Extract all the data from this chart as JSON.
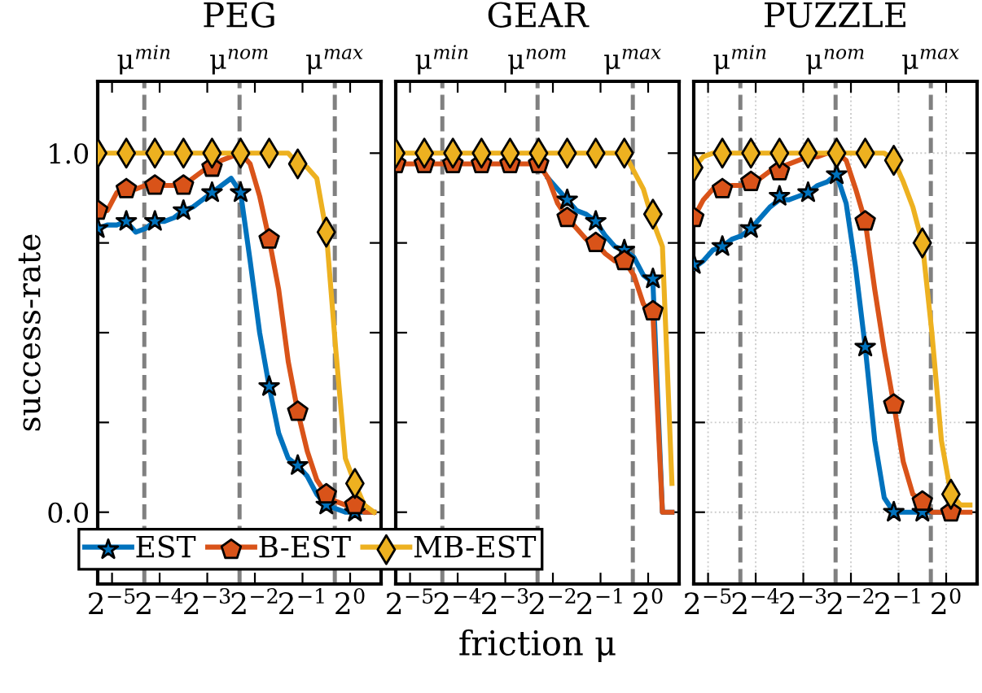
{
  "chart_data": [
    {
      "type": "line",
      "title": "PEG",
      "ylabel": "success-rate",
      "log": "x",
      "legend": "bottom right",
      "grid": false,
      "x": [
        0.02537,
        0.02916,
        0.03349,
        0.03847,
        0.04419,
        0.05076,
        0.05831,
        0.06699,
        0.07695,
        0.08839,
        0.1015,
        0.1166,
        0.134,
        0.1539,
        0.1768,
        0.2031,
        0.2333,
        0.2679,
        0.3078,
        0.3536,
        0.4061,
        0.4665,
        0.5359,
        0.6156,
        0.7071,
        0.8123,
        0.933,
        1.072,
        1.231,
        1.414
      ],
      "xlim": [
        0.02537,
        1.569
      ],
      "xticks": [
        {
          "value": 0.03125,
          "label": "2$^{−5}$"
        },
        {
          "value": 0.0625,
          "label": "2$^{−4}$"
        },
        {
          "value": 0.125,
          "label": "2$^{−3}$"
        },
        {
          "value": 0.25,
          "label": "2$^{−2}$"
        },
        {
          "value": 0.5,
          "label": "2$^{−1}$"
        },
        {
          "value": 1,
          "label": "2$^{0}$"
        }
      ],
      "ylim": [
        -0.2,
        1.2
      ],
      "yticks": [
        {
          "value": 0,
          "label": "0.0"
        },
        {
          "value": 0.25,
          "label": null
        },
        {
          "value": 0.5,
          "label": null
        },
        {
          "value": 0.75,
          "label": null
        },
        {
          "value": 1,
          "label": "1.0"
        }
      ],
      "ref_lines": [
        {
          "axis": "x",
          "value": 0.05,
          "label": "μ$^{min}$",
          "color": "#808080",
          "line_style": "dashed"
        },
        {
          "axis": "x",
          "value": 0.2,
          "label": "μ$^{nom}$",
          "color": "#808080",
          "line_style": "dashed"
        },
        {
          "axis": "x",
          "value": 0.8,
          "label": "μ$^{max}$",
          "color": "#808080",
          "line_style": "dashed"
        }
      ],
      "series": [
        {
          "name": "EST",
          "color": "#0072bd",
          "values": [
            0.79,
            0.8,
            0.8,
            0.81,
            0.78,
            0.79,
            0.81,
            0.81,
            0.82,
            0.84,
            0.85,
            0.87,
            0.89,
            0.91,
            0.93,
            0.89,
            0.7,
            0.5,
            0.35,
            0.22,
            0.15,
            0.13,
            0.1,
            0.05,
            0.02,
            0.01,
            0,
            0,
            0,
            0
          ]
        },
        {
          "name": "B-EST",
          "color": "#d95319",
          "values": [
            0.84,
            0.84,
            0.89,
            0.9,
            0.9,
            0.91,
            0.91,
            0.91,
            0.91,
            0.91,
            0.93,
            0.95,
            0.96,
            0.98,
            0.99,
            1.0,
            0.97,
            0.88,
            0.76,
            0.62,
            0.42,
            0.28,
            0.17,
            0.09,
            0.05,
            0.03,
            0.02,
            0.02,
            0,
            0
          ]
        },
        {
          "name": "MB-EST",
          "color": "#edb120",
          "values": [
            1,
            1,
            1,
            1,
            1,
            1,
            1,
            1,
            1,
            1,
            1,
            1,
            1,
            1,
            1,
            1,
            1,
            1,
            1,
            1,
            1,
            0.97,
            0.96,
            0.93,
            0.78,
            0.45,
            0.15,
            0.08,
            0.02,
            0
          ]
        },
        {
          "type": "scatter",
          "color": "#0072bd",
          "marker": "star",
          "x": [
            0.02537,
            0.03847,
            0.05831,
            0.08839,
            0.134,
            0.2031,
            0.3078,
            0.4665,
            0.7071,
            1.072
          ],
          "values": [
            0.79,
            0.81,
            0.81,
            0.84,
            0.89,
            0.89,
            0.35,
            0.13,
            0.02,
            0
          ]
        },
        {
          "type": "scatter",
          "color": "#d95319",
          "x": [
            0.02537,
            0.03847,
            0.05831,
            0.08839,
            0.134,
            0.2031,
            0.3078,
            0.4665,
            0.7071,
            1.072
          ],
          "values": [
            0.84,
            0.9,
            0.91,
            0.91,
            0.96,
            null,
            0.76,
            0.28,
            0.05,
            0.02
          ]
        },
        {
          "type": "scatter",
          "color": "#edb120",
          "marker": "diamond",
          "x": [
            0.02537,
            0.03847,
            0.05831,
            0.08839,
            0.134,
            0.2031,
            0.3078,
            0.4665,
            0.7071,
            1.072
          ],
          "values": [
            1,
            1,
            1,
            1,
            1,
            1,
            1,
            0.97,
            0.78,
            0.08
          ]
        }
      ]
    },
    {
      "type": "line",
      "title": "GEAR",
      "xlabel": "friction μ",
      "log": "x",
      "grid": false,
      "tick_labels": "x",
      "x": [
        0.02537,
        0.02916,
        0.03349,
        0.03847,
        0.04419,
        0.05076,
        0.05831,
        0.06699,
        0.07695,
        0.08839,
        0.1015,
        0.1166,
        0.134,
        0.1539,
        0.1768,
        0.2031,
        0.2333,
        0.2679,
        0.3078,
        0.3536,
        0.4061,
        0.4665,
        0.5359,
        0.6156,
        0.7071,
        0.8123,
        0.933,
        1.072,
        1.231,
        1.414
      ],
      "xlim": [
        0.02537,
        1.569
      ],
      "xticks": [
        {
          "value": 0.03125,
          "label": "2$^{−5}$"
        },
        {
          "value": 0.0625,
          "label": "2$^{−4}$"
        },
        {
          "value": 0.125,
          "label": "2$^{−3}$"
        },
        {
          "value": 0.25,
          "label": "2$^{−2}$"
        },
        {
          "value": 0.5,
          "label": "2$^{−1}$"
        },
        {
          "value": 1,
          "label": "2$^{0}$"
        }
      ],
      "ylim": [
        -0.2,
        1.2
      ],
      "yticks": [
        0,
        0.25,
        0.5,
        0.75,
        1
      ],
      "ref_lines": [
        {
          "axis": "x",
          "value": 0.05,
          "label": "μ$^{min}$",
          "color": "#808080",
          "line_style": "dashed"
        },
        {
          "axis": "x",
          "value": 0.2,
          "label": "μ$^{nom}$",
          "color": "#808080",
          "line_style": "dashed"
        },
        {
          "axis": "x",
          "value": 0.8,
          "label": "μ$^{max}$",
          "color": "#808080",
          "line_style": "dashed"
        }
      ],
      "series": [
        {
          "color": "#0072bd",
          "values": [
            null,
            null,
            null,
            null,
            null,
            null,
            null,
            null,
            null,
            null,
            null,
            null,
            null,
            null,
            null,
            null,
            0.93,
            0.9,
            0.87,
            0.84,
            0.83,
            0.81,
            0.77,
            0.74,
            0.73,
            0.71,
            0.66,
            0.64,
            0,
            0
          ]
        },
        {
          "color": "#d95319",
          "values": [
            0.97,
            0.97,
            0.97,
            0.97,
            0.97,
            0.97,
            0.97,
            0.97,
            0.97,
            0.97,
            0.97,
            0.97,
            0.97,
            0.97,
            0.97,
            0.97,
            0.93,
            0.86,
            0.82,
            0.79,
            0.76,
            0.75,
            0.72,
            0.7,
            0.7,
            0.66,
            0.58,
            0.55,
            0,
            0
          ]
        },
        {
          "color": "#edb120",
          "values": [
            1,
            1,
            1,
            1,
            1,
            1,
            1,
            1,
            1,
            1,
            1,
            1,
            1,
            1,
            1,
            1,
            1,
            1,
            1,
            1,
            1,
            1,
            1,
            1,
            1,
            0.95,
            0.9,
            0.81,
            0.74,
            0.08
          ]
        },
        {
          "type": "scatter",
          "color": "#0072bd",
          "marker": "star",
          "x": [
            0.3078,
            0.4665,
            0.7071,
            1.072
          ],
          "values": [
            0.87,
            0.81,
            0.73,
            0.65
          ]
        },
        {
          "type": "scatter",
          "color": "#d95319",
          "x": [
            0.02537,
            0.03847,
            0.05831,
            0.08839,
            0.134,
            0.2031,
            0.3078,
            0.4665,
            0.7071,
            1.072
          ],
          "values": [
            0.97,
            0.97,
            0.97,
            0.97,
            0.97,
            0.97,
            0.82,
            0.75,
            0.7,
            0.56
          ]
        },
        {
          "type": "scatter",
          "color": "#edb120",
          "marker": "diamond",
          "x": [
            0.02537,
            0.03847,
            0.05831,
            0.08839,
            0.134,
            0.2031,
            0.3078,
            0.4665,
            0.7071,
            1.072
          ],
          "values": [
            1,
            1,
            1,
            1,
            1,
            1,
            1,
            1,
            1,
            0.83
          ]
        }
      ]
    },
    {
      "type": "line",
      "title": "PUZZLE",
      "log": "x",
      "grid": true,
      "tick_labels": "x",
      "x": [
        0.02537,
        0.02916,
        0.03349,
        0.03847,
        0.04419,
        0.05076,
        0.05831,
        0.06699,
        0.07695,
        0.08839,
        0.1015,
        0.1166,
        0.134,
        0.1539,
        0.1768,
        0.2031,
        0.2333,
        0.2679,
        0.3078,
        0.3536,
        0.4061,
        0.4665,
        0.5359,
        0.6156,
        0.7071,
        0.8123,
        0.933,
        1.072,
        1.231,
        1.414
      ],
      "xlim": [
        0.02537,
        1.569
      ],
      "xticks": [
        {
          "value": 0.03125,
          "label": "2$^{−5}$"
        },
        {
          "value": 0.0625,
          "label": "2$^{−4}$"
        },
        {
          "value": 0.125,
          "label": "2$^{−3}$"
        },
        {
          "value": 0.25,
          "label": "2$^{−2}$"
        },
        {
          "value": 0.5,
          "label": "2$^{−1}$"
        },
        {
          "value": 1,
          "label": "2$^{0}$"
        }
      ],
      "ylim": [
        -0.2,
        1.2
      ],
      "yticks": [
        0,
        0.25,
        0.5,
        0.75,
        1
      ],
      "ref_lines": [
        {
          "axis": "x",
          "value": 0.05,
          "label": "μ$^{min}$",
          "color": "#808080",
          "line_style": "dashed"
        },
        {
          "axis": "x",
          "value": 0.2,
          "label": "μ$^{nom}$",
          "color": "#808080",
          "line_style": "dashed"
        },
        {
          "axis": "x",
          "value": 0.8,
          "label": "μ$^{max}$",
          "color": "#808080",
          "line_style": "dashed"
        }
      ],
      "series": [
        {
          "color": "#0072bd",
          "values": [
            0.68,
            0.7,
            0.73,
            0.74,
            0.76,
            0.77,
            0.79,
            0.82,
            0.85,
            0.87,
            0.87,
            0.88,
            0.89,
            0.91,
            0.92,
            0.94,
            0.86,
            0.68,
            0.46,
            0.2,
            0.04,
            0,
            0,
            0,
            0,
            0,
            0,
            null,
            null,
            null
          ]
        },
        {
          "color": "#d95319",
          "values": [
            0.82,
            0.87,
            0.9,
            0.9,
            0.91,
            0.91,
            0.92,
            0.93,
            0.95,
            0.96,
            0.97,
            0.98,
            0.99,
            0.99,
            1,
            1,
            0.98,
            0.9,
            0.81,
            0.62,
            0.45,
            0.3,
            0.14,
            0.05,
            0.03,
            0,
            0,
            0,
            0,
            0
          ]
        },
        {
          "color": "#edb120",
          "values": [
            0.96,
            0.99,
            1,
            1,
            1,
            1,
            1,
            1,
            1,
            1,
            1,
            1,
            1,
            1,
            1,
            1,
            1,
            1,
            1,
            1,
            1,
            0.98,
            0.92,
            0.85,
            0.75,
            0.5,
            0.2,
            0.05,
            0.02,
            0.02
          ]
        },
        {
          "type": "scatter",
          "color": "#0072bd",
          "marker": "star",
          "x": [
            0.02537,
            0.03847,
            0.05831,
            0.08839,
            0.134,
            0.2031,
            0.3078,
            0.4665,
            0.7071
          ],
          "values": [
            0.69,
            0.74,
            0.79,
            0.88,
            0.89,
            0.94,
            0.46,
            0,
            0
          ]
        },
        {
          "type": "scatter",
          "color": "#d95319",
          "x": [
            0.02537,
            0.03847,
            0.05831,
            0.08839,
            0.134,
            0.2031,
            0.3078,
            0.4665,
            0.7071,
            1.072
          ],
          "values": [
            0.82,
            0.9,
            0.92,
            0.95,
            null,
            null,
            0.81,
            0.3,
            0.03,
            0
          ]
        },
        {
          "type": "scatter",
          "color": "#edb120",
          "marker": "diamond",
          "x": [
            0.02537,
            0.03847,
            0.05831,
            0.08839,
            0.134,
            0.2031,
            0.3078,
            0.4665,
            0.7071,
            1.072
          ],
          "values": [
            0.96,
            1,
            1,
            1,
            1,
            1,
            1,
            0.98,
            0.75,
            0.05
          ]
        }
      ]
    }
  ]
}
